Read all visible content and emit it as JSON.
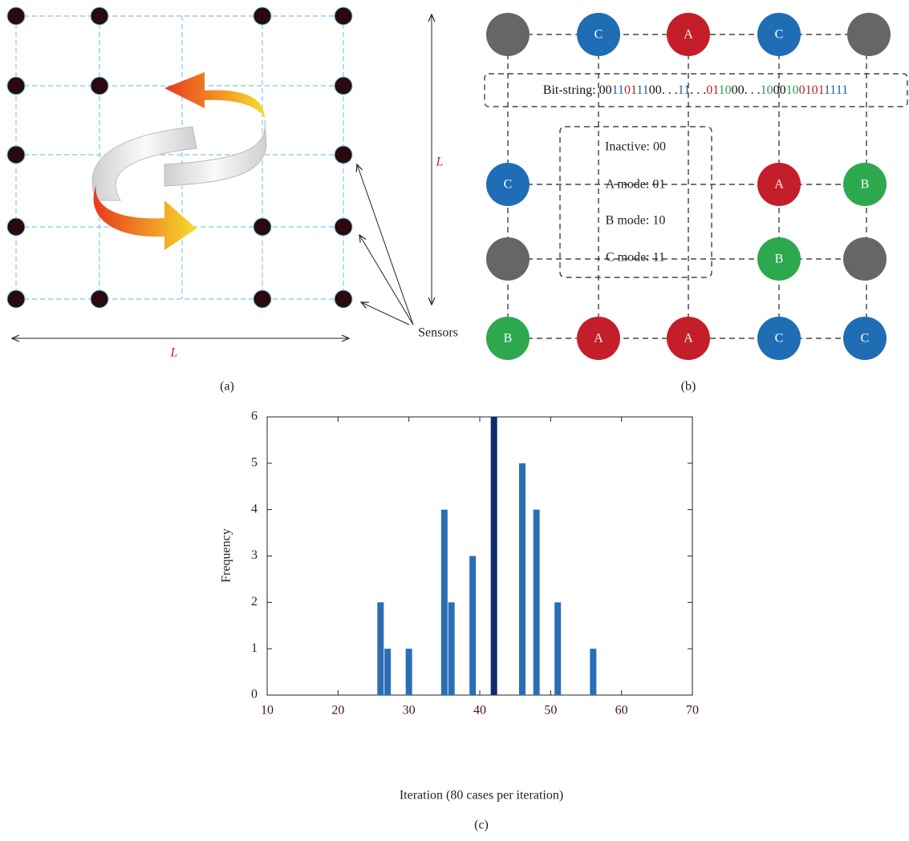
{
  "panel_a": {
    "length_label_v": "L",
    "length_label_h": "L",
    "sensors_label": "Sensors",
    "caption": "(a)"
  },
  "panel_b": {
    "bit_string": [
      {
        "text": "Bit-string: 00",
        "color": "#111111"
      },
      {
        "text": "11",
        "color": "#1f5fa8"
      },
      {
        "text": "01",
        "color": "#c0202a"
      },
      {
        "text": "11",
        "color": "#1f5fa8"
      },
      {
        "text": "00. . .",
        "color": "#111111"
      },
      {
        "text": "11",
        "color": "#1f5fa8"
      },
      {
        "text": ". . .",
        "color": "#111111"
      },
      {
        "text": "01",
        "color": "#c0202a"
      },
      {
        "text": "10",
        "color": "#2a9a4a"
      },
      {
        "text": "00. . .",
        "color": "#111111"
      },
      {
        "text": "10",
        "color": "#2a9a4a"
      },
      {
        "text": "00",
        "color": "#111111"
      },
      {
        "text": "10",
        "color": "#2a9a4a"
      },
      {
        "text": "01",
        "color": "#c0202a"
      },
      {
        "text": "01",
        "color": "#c0202a"
      },
      {
        "text": "11",
        "color": "#1f5fa8"
      },
      {
        "text": "11",
        "color": "#1f5fa8"
      }
    ],
    "legend": [
      "Inactive: 00",
      "A mode: 01",
      "B mode: 10",
      "C mode: 11"
    ],
    "nodes": [
      {
        "color": "#666666"
      },
      {
        "label": "C",
        "color": "#1f6db5"
      },
      {
        "label": "A",
        "color": "#c41e2a"
      },
      {
        "label": "C",
        "color": "#1f6db5"
      },
      {
        "color": "#666666"
      },
      {
        "label": "C",
        "color": "#1f6db5"
      },
      {
        "label": "A",
        "color": "#c41e2a"
      },
      {
        "label": "B",
        "color": "#2ea84e"
      },
      {
        "color": "#666666"
      },
      {
        "label": "B",
        "color": "#2ea84e"
      },
      {
        "color": "#666666"
      },
      {
        "label": "B",
        "color": "#2ea84e"
      },
      {
        "label": "A",
        "color": "#c41e2a"
      },
      {
        "label": "A",
        "color": "#c41e2a"
      },
      {
        "label": "C",
        "color": "#1f6db5"
      },
      {
        "label": "C",
        "color": "#1f6db5"
      }
    ],
    "caption": "(b)"
  },
  "chart_data": {
    "type": "bar",
    "x_label": "Iteration (80 cases per iteration)",
    "y_label": "Frequency",
    "x": [
      26,
      27,
      30,
      35,
      36,
      39,
      42,
      46,
      48,
      51,
      56
    ],
    "values": [
      2,
      1,
      1,
      4,
      2,
      3,
      6,
      5,
      4,
      2,
      1
    ],
    "colors": [
      "#2a6eb5",
      "#2a6eb5",
      "#2a6eb5",
      "#2a6eb5",
      "#2a6eb5",
      "#2a6eb5",
      "#0f2c6e",
      "#2a6eb5",
      "#2a6eb5",
      "#2a6eb5",
      "#2a6eb5"
    ],
    "xlim": [
      10,
      70
    ],
    "xticks": [
      10,
      20,
      30,
      40,
      50,
      60,
      70
    ],
    "ylim": [
      0,
      6
    ],
    "yticks": [
      0,
      1,
      2,
      3,
      4,
      5,
      6
    ],
    "caption": "(c)"
  }
}
